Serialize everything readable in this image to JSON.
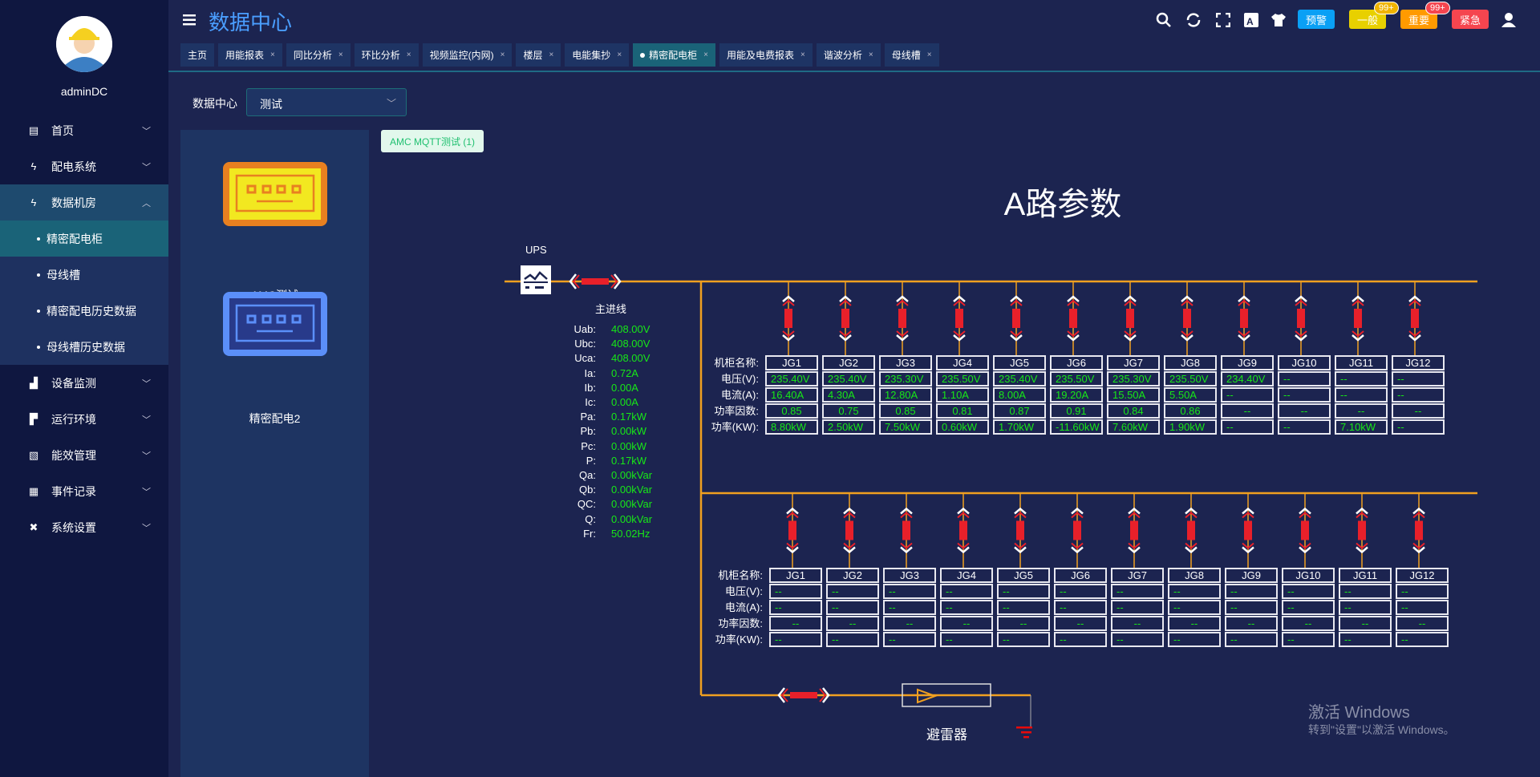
{
  "sidebar": {
    "username": "adminDC",
    "items": [
      {
        "label": "首页",
        "icon": "monitor-icon",
        "expanded": false
      },
      {
        "label": "配电系统",
        "icon": "lightning-icon",
        "expanded": false
      },
      {
        "label": "数据机房",
        "icon": "lightning-icon",
        "expanded": true
      },
      {
        "label": "设备监测",
        "icon": "bar-chart-icon",
        "expanded": false
      },
      {
        "label": "运行环境",
        "icon": "camera-icon",
        "expanded": false
      },
      {
        "label": "能效管理",
        "icon": "area-chart-icon",
        "expanded": false
      },
      {
        "label": "事件记录",
        "icon": "document-icon",
        "expanded": false
      },
      {
        "label": "系统设置",
        "icon": "tools-icon",
        "expanded": false
      }
    ],
    "subitems": [
      {
        "label": "精密配电柜",
        "active": true
      },
      {
        "label": "母线槽"
      },
      {
        "label": "精密配电历史数据"
      },
      {
        "label": "母线槽历史数据"
      }
    ]
  },
  "header": {
    "title": "数据中心",
    "tabs": [
      {
        "label": "主页",
        "closable": false
      },
      {
        "label": "用能报表"
      },
      {
        "label": "同比分析"
      },
      {
        "label": "环比分析"
      },
      {
        "label": "视频监控(内网)"
      },
      {
        "label": "楼层"
      },
      {
        "label": "电能集抄"
      },
      {
        "label": "精密配电柜",
        "active": true
      },
      {
        "label": "用能及电费报表"
      },
      {
        "label": "谐波分析"
      },
      {
        "label": "母线槽"
      }
    ],
    "alarm_buttons": [
      {
        "label": "预警",
        "color": "#0aa0f5"
      },
      {
        "label": "一般",
        "color": "#e8d000",
        "badge": "99+",
        "badge_color": "#f0b400"
      },
      {
        "label": "重要",
        "color": "#ff9a00",
        "badge": "99+",
        "badge_color": "#f5454f"
      },
      {
        "label": "紧急",
        "color": "#f5454f"
      }
    ]
  },
  "filter": {
    "label": "数据中心",
    "selected": "测试"
  },
  "devices": [
    {
      "name": "AMC测试",
      "color": "#e88020"
    },
    {
      "name": "精密配电2",
      "color": "#5b8ff9"
    }
  ],
  "tag": "AMC MQTT测试 (1)",
  "diagram": {
    "title": "A路参数",
    "ups_label": "UPS",
    "main_line_label": "主进线",
    "arrester_label": "避雷器",
    "line_color": "#f0a020",
    "value_color": "#17e817",
    "main_params": [
      [
        "Uab:",
        "408.00V"
      ],
      [
        "Ubc:",
        "408.00V"
      ],
      [
        "Uca:",
        "408.00V"
      ],
      [
        "Ia:",
        "0.72A"
      ],
      [
        "Ib:",
        "0.00A"
      ],
      [
        "Ic:",
        "0.00A"
      ],
      [
        "Pa:",
        "0.17kW"
      ],
      [
        "Pb:",
        "0.00kW"
      ],
      [
        "Pc:",
        "0.00kW"
      ],
      [
        "P:",
        "0.17kW"
      ],
      [
        "Qa:",
        "0.00kVar"
      ],
      [
        "Qb:",
        "0.00kVar"
      ],
      [
        "QC:",
        "0.00kVar"
      ],
      [
        "Q:",
        "0.00kVar"
      ],
      [
        "Fr:",
        "50.02Hz"
      ]
    ],
    "row_labels": [
      "机柜名称:",
      "电压(V):",
      "电流(A):",
      "功率因数:",
      "功率(KW):"
    ],
    "upper": [
      {
        "name": "JG1",
        "v": "235.40V",
        "a": "16.40A",
        "pf": "0.85",
        "p": "8.80kW"
      },
      {
        "name": "JG2",
        "v": "235.40V",
        "a": "4.30A",
        "pf": "0.75",
        "p": "2.50kW"
      },
      {
        "name": "JG3",
        "v": "235.30V",
        "a": "12.80A",
        "pf": "0.85",
        "p": "7.50kW"
      },
      {
        "name": "JG4",
        "v": "235.50V",
        "a": "1.10A",
        "pf": "0.81",
        "p": "0.60kW"
      },
      {
        "name": "JG5",
        "v": "235.40V",
        "a": "8.00A",
        "pf": "0.87",
        "p": "1.70kW"
      },
      {
        "name": "JG6",
        "v": "235.50V",
        "a": "19.20A",
        "pf": "0.91",
        "p": "-11.60kW"
      },
      {
        "name": "JG7",
        "v": "235.30V",
        "a": "15.50A",
        "pf": "0.84",
        "p": "7.60kW"
      },
      {
        "name": "JG8",
        "v": "235.50V",
        "a": "5.50A",
        "pf": "0.86",
        "p": "1.90kW"
      },
      {
        "name": "JG9",
        "v": "234.40V",
        "a": "--",
        "pf": "--",
        "p": "--"
      },
      {
        "name": "JG10",
        "v": "--",
        "a": "--",
        "pf": "--",
        "p": "--"
      },
      {
        "name": "JG11",
        "v": "--",
        "a": "--",
        "pf": "--",
        "p": "7.10kW"
      },
      {
        "name": "JG12",
        "v": "--",
        "a": "--",
        "pf": "--",
        "p": "--"
      }
    ],
    "lower": [
      {
        "name": "JG1",
        "v": "--",
        "a": "--",
        "pf": "--",
        "p": "--"
      },
      {
        "name": "JG2",
        "v": "--",
        "a": "--",
        "pf": "--",
        "p": "--"
      },
      {
        "name": "JG3",
        "v": "--",
        "a": "--",
        "pf": "--",
        "p": "--"
      },
      {
        "name": "JG4",
        "v": "--",
        "a": "--",
        "pf": "--",
        "p": "--"
      },
      {
        "name": "JG5",
        "v": "--",
        "a": "--",
        "pf": "--",
        "p": "--"
      },
      {
        "name": "JG6",
        "v": "--",
        "a": "--",
        "pf": "--",
        "p": "--"
      },
      {
        "name": "JG7",
        "v": "--",
        "a": "--",
        "pf": "--",
        "p": "--"
      },
      {
        "name": "JG8",
        "v": "--",
        "a": "--",
        "pf": "--",
        "p": "--"
      },
      {
        "name": "JG9",
        "v": "--",
        "a": "--",
        "pf": "--",
        "p": "--"
      },
      {
        "name": "JG10",
        "v": "--",
        "a": "--",
        "pf": "--",
        "p": "--"
      },
      {
        "name": "JG11",
        "v": "--",
        "a": "--",
        "pf": "--",
        "p": "--"
      },
      {
        "name": "JG12",
        "v": "--",
        "a": "--",
        "pf": "--",
        "p": "--"
      }
    ]
  },
  "watermark": {
    "line1": "激活 Windows",
    "line2": "转到\"设置\"以激活 Windows。"
  }
}
